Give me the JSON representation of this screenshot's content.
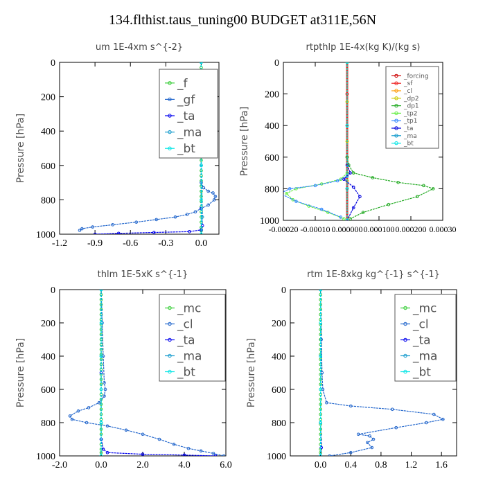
{
  "figure": {
    "title": "134.flthist.taus_tuning00  BUDGET at311E,56N"
  },
  "chart_data": [
    {
      "type": "line",
      "title": "um   1E-4xm s^{-2}",
      "ylabel": "Pressure [hPa]",
      "xlim": [
        -1.2,
        0.15
      ],
      "ylim": [
        1000,
        0
      ],
      "xticks": [
        -1.2,
        -0.9,
        -0.6,
        -0.3,
        0.0
      ],
      "xtick_labels": [
        "-1.2",
        "-0.9",
        "-0.6",
        "-0.3",
        "0.0"
      ],
      "yticks": [
        0,
        200,
        400,
        600,
        800,
        1000
      ],
      "ytick_labels": [
        "0",
        "200",
        "400",
        "600",
        "800",
        "1000"
      ],
      "legend_position": "top-right",
      "series": [
        {
          "name": "_f",
          "color": "#33cc33",
          "x": [
            0,
            0,
            0,
            0,
            0,
            0,
            0,
            0,
            0,
            0,
            0,
            0,
            0,
            0,
            0,
            0,
            0,
            0,
            0,
            0,
            0,
            0,
            0,
            0,
            0,
            0,
            0,
            0,
            0,
            0,
            0,
            0,
            0,
            0,
            0
          ],
          "y": [
            0,
            30,
            60,
            90,
            120,
            150,
            180,
            210,
            240,
            270,
            300,
            330,
            360,
            390,
            420,
            450,
            480,
            510,
            540,
            570,
            600,
            630,
            660,
            690,
            720,
            750,
            780,
            810,
            840,
            870,
            900,
            930,
            960,
            980,
            1000
          ]
        },
        {
          "name": "_gf",
          "color": "#2266cc",
          "x": [
            0.0,
            0.02,
            0.06,
            0.1,
            0.12,
            0.11,
            0.06,
            0.0,
            -0.05,
            -0.12,
            -0.22,
            -0.38,
            -0.55,
            -0.75,
            -0.92,
            -1.01,
            -1.03
          ],
          "y": [
            700,
            730,
            750,
            760,
            780,
            800,
            830,
            850,
            870,
            885,
            900,
            915,
            930,
            945,
            958,
            968,
            978
          ]
        },
        {
          "name": "_ta",
          "color": "#0000ee",
          "x": [
            0,
            0,
            0,
            0,
            0.01,
            0.0,
            -0.1,
            -0.4,
            -0.7,
            -0.9
          ],
          "y": [
            0,
            300,
            600,
            850,
            950,
            975,
            985,
            990,
            995,
            1000
          ]
        },
        {
          "name": "_ma",
          "color": "#1199cc",
          "x": [
            0.0,
            0.0,
            0.01,
            0.0
          ],
          "y": [
            0,
            500,
            900,
            1000
          ]
        },
        {
          "name": "_bt",
          "color": "#00e5e5",
          "x": [
            0,
            0,
            0,
            0,
            0,
            0
          ],
          "y": [
            0,
            200,
            400,
            600,
            800,
            1000
          ]
        }
      ]
    },
    {
      "type": "line",
      "title": "rtpthlp   1E-4x(kg K)/(kg s)",
      "ylabel": "Pressure [hPa]",
      "xlim": [
        -0.0002,
        0.0003
      ],
      "ylim": [
        1000,
        0
      ],
      "xticks": [
        -0.0002,
        -0.0001,
        0.0,
        0.0001,
        0.0002,
        0.0003
      ],
      "xtick_labels": [
        "-0.00020",
        "-0.00010",
        "0.000000",
        "0.000100",
        "0.000200",
        "0.00030"
      ],
      "yticks": [
        0,
        200,
        400,
        600,
        800,
        1000
      ],
      "ytick_labels": [
        "0",
        "200",
        "400",
        "600",
        "800",
        "1000"
      ],
      "legend_position": "top-right",
      "series": [
        {
          "name": "_forcing",
          "color": "#cc0000",
          "x": [
            0,
            0,
            0,
            0,
            0,
            0
          ],
          "y": [
            0,
            200,
            400,
            600,
            800,
            1000
          ]
        },
        {
          "name": "_sf",
          "color": "#ee2222",
          "x": [
            0,
            0,
            0,
            0,
            0,
            0
          ],
          "y": [
            0,
            200,
            400,
            600,
            800,
            1000
          ]
        },
        {
          "name": "_cl",
          "color": "#ff9900",
          "x": [
            0,
            0,
            0,
            0,
            0
          ],
          "y": [
            0,
            250,
            500,
            750,
            1000
          ]
        },
        {
          "name": "_dp2",
          "color": "#cccc00",
          "x": [
            0,
            0,
            0,
            0,
            0
          ],
          "y": [
            0,
            250,
            500,
            750,
            1000
          ]
        },
        {
          "name": "_dp1",
          "color": "#22aa22",
          "x": [
            0,
            5e-06,
            2e-05,
            8e-05,
            0.00016,
            0.00024,
            0.00027,
            0.00022,
            0.00013,
            5e-05,
            1e-05
          ],
          "y": [
            600,
            650,
            700,
            730,
            760,
            780,
            800,
            850,
            900,
            950,
            990
          ]
        },
        {
          "name": "_tp2",
          "color": "#66ee44",
          "x": [
            0,
            -2e-05,
            -8e-05,
            -0.00016,
            -0.00019,
            -0.00017,
            -0.00012,
            -6e-05,
            -1e-05
          ],
          "y": [
            700,
            740,
            770,
            800,
            830,
            870,
            910,
            950,
            990
          ]
        },
        {
          "name": "_tp1",
          "color": "#3388ff",
          "x": [
            0,
            -3e-05,
            -0.0001,
            -0.00018,
            -0.00021,
            -0.00016,
            -8e-05,
            -2e-05
          ],
          "y": [
            720,
            750,
            780,
            800,
            830,
            880,
            930,
            980
          ]
        },
        {
          "name": "_ta",
          "color": "#0000dd",
          "x": [
            0,
            1e-05,
            -1e-05,
            2e-05,
            4e-05,
            2e-05,
            0.0
          ],
          "y": [
            650,
            700,
            740,
            790,
            850,
            920,
            1000
          ]
        },
        {
          "name": "_ma",
          "color": "#1199cc",
          "x": [
            0,
            0,
            0,
            0
          ],
          "y": [
            0,
            400,
            800,
            1000
          ]
        },
        {
          "name": "_bt",
          "color": "#00e5e5",
          "x": [
            0,
            0,
            0,
            0
          ],
          "y": [
            0,
            400,
            800,
            1000
          ]
        }
      ]
    },
    {
      "type": "line",
      "title": "thlm   1E-5xK s^{-1}",
      "ylabel": "Pressure [hPa]",
      "xlim": [
        -2.0,
        6.0
      ],
      "ylim": [
        1000,
        0
      ],
      "xticks": [
        -2.0,
        0.0,
        2.0,
        4.0,
        6.0
      ],
      "xtick_labels": [
        "-2.0",
        "0.0",
        "2.0",
        "4.0",
        "6.0"
      ],
      "yticks": [
        0,
        200,
        400,
        600,
        800,
        1000
      ],
      "ytick_labels": [
        "0",
        "200",
        "400",
        "600",
        "800",
        "1000"
      ],
      "legend_position": "top-right",
      "series": [
        {
          "name": "_mc",
          "color": "#33cc33",
          "x": [
            0,
            0,
            0,
            0,
            0,
            0,
            0,
            0,
            0,
            0,
            0,
            0,
            0,
            0,
            0,
            0,
            0,
            0,
            0,
            0,
            0,
            0,
            0,
            0,
            0,
            0,
            0,
            0,
            0,
            0,
            0,
            0,
            0,
            0,
            0
          ],
          "y": [
            0,
            30,
            60,
            90,
            120,
            150,
            180,
            210,
            240,
            270,
            300,
            330,
            360,
            390,
            420,
            450,
            480,
            510,
            540,
            570,
            600,
            630,
            660,
            690,
            720,
            750,
            780,
            810,
            840,
            870,
            900,
            930,
            960,
            980,
            1000
          ]
        },
        {
          "name": "_cl",
          "color": "#2266cc",
          "x": [
            0.0,
            0.05,
            0.1,
            0.15,
            0.2,
            0.15,
            -0.1,
            -0.6,
            -1.1,
            -1.5,
            -1.4,
            -0.7,
            0.3,
            1.2,
            2.0,
            2.8,
            3.5,
            4.2,
            4.8,
            5.4,
            5.9
          ],
          "y": [
            0,
            200,
            400,
            560,
            600,
            640,
            680,
            710,
            730,
            760,
            780,
            800,
            820,
            845,
            870,
            900,
            930,
            955,
            970,
            985,
            1000
          ]
        },
        {
          "name": "_ta",
          "color": "#0000ee",
          "x": [
            0,
            0,
            0,
            0.1,
            0.3,
            2.0,
            4.0,
            5.5
          ],
          "y": [
            0,
            500,
            900,
            960,
            980,
            990,
            995,
            1000
          ]
        },
        {
          "name": "_ma",
          "color": "#1199cc",
          "x": [
            0,
            0,
            0,
            0
          ],
          "y": [
            0,
            400,
            800,
            1000
          ]
        },
        {
          "name": "_bt",
          "color": "#00e5e5",
          "x": [
            0,
            0,
            0,
            0,
            0,
            0
          ],
          "y": [
            0,
            200,
            400,
            600,
            800,
            1000
          ]
        }
      ]
    },
    {
      "type": "line",
      "title": "rtm   1E-8xkg kg^{-1} s^{-1}",
      "ylabel": "Pressure [hPa]",
      "xlim": [
        -0.4,
        1.8
      ],
      "ylim": [
        1000,
        0
      ],
      "xticks": [
        0.0,
        0.4,
        0.8,
        1.2,
        1.6
      ],
      "xtick_labels": [
        "0.0",
        "0.4",
        "0.8",
        "1.2",
        "1.6"
      ],
      "yticks": [
        0,
        200,
        400,
        600,
        800,
        1000
      ],
      "ytick_labels": [
        "0",
        "200",
        "400",
        "600",
        "800",
        "1000"
      ],
      "legend_position": "top-right",
      "series": [
        {
          "name": "_mc",
          "color": "#33cc33",
          "x": [
            0,
            0,
            0,
            0,
            0,
            0,
            0,
            0,
            0,
            0,
            0,
            0,
            0,
            0,
            0,
            0,
            0,
            0,
            0,
            0,
            0,
            0,
            0,
            0,
            0,
            0,
            0,
            0,
            0,
            0,
            0,
            0,
            0,
            0,
            0
          ],
          "y": [
            0,
            30,
            60,
            90,
            120,
            150,
            180,
            210,
            240,
            270,
            300,
            330,
            360,
            390,
            420,
            450,
            480,
            510,
            540,
            570,
            600,
            630,
            660,
            690,
            720,
            750,
            780,
            810,
            840,
            870,
            900,
            930,
            960,
            980,
            1000
          ]
        },
        {
          "name": "_cl",
          "color": "#2266cc",
          "x": [
            0.0,
            0.01,
            0.02,
            0.03,
            0.08,
            0.4,
            0.95,
            1.5,
            1.62,
            1.4,
            1.0,
            0.5,
            0.65,
            0.7,
            0.62,
            0.68,
            0.4,
            0.12
          ],
          "y": [
            0,
            300,
            500,
            600,
            680,
            700,
            720,
            750,
            780,
            800,
            830,
            870,
            880,
            900,
            920,
            950,
            980,
            1000
          ]
        },
        {
          "name": "_ta",
          "color": "#0000ee",
          "x": [
            0,
            0,
            0,
            0.01,
            0.0
          ],
          "y": [
            0,
            400,
            800,
            950,
            1000
          ]
        },
        {
          "name": "_ma",
          "color": "#1199cc",
          "x": [
            0,
            0,
            0,
            0
          ],
          "y": [
            0,
            400,
            800,
            1000
          ]
        },
        {
          "name": "_bt",
          "color": "#00e5e5",
          "x": [
            0,
            0,
            0,
            0,
            0,
            0
          ],
          "y": [
            0,
            200,
            400,
            600,
            800,
            1000
          ]
        }
      ]
    }
  ]
}
